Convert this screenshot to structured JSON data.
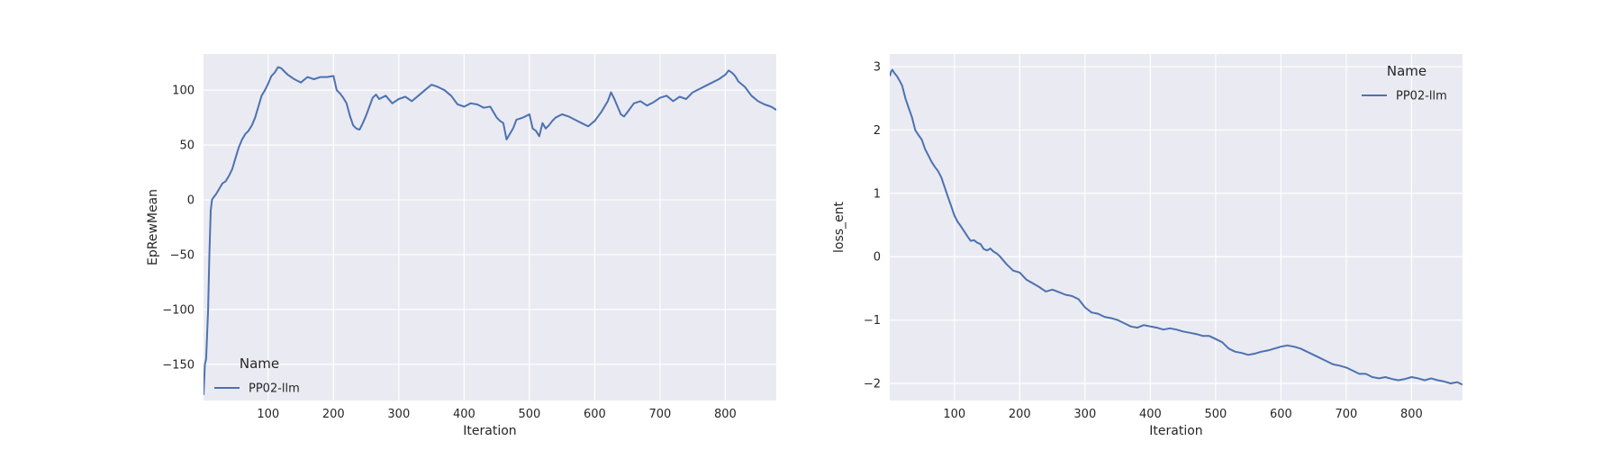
{
  "colors": {
    "plot_bg": "#EAEAF2",
    "grid": "#FFFFFF",
    "line": "#4C72B0",
    "text": "#262626"
  },
  "chart_data": [
    {
      "type": "line",
      "xlabel": "Iteration",
      "ylabel": "EpRewMean",
      "xlim": [
        1,
        878
      ],
      "ylim": [
        -183,
        133
      ],
      "x_ticks": [
        100,
        200,
        300,
        400,
        500,
        600,
        700,
        800
      ],
      "y_ticks": [
        -150,
        -100,
        -50,
        0,
        50,
        100
      ],
      "grid": true,
      "legend": {
        "title": "Name",
        "placement": "lower-left",
        "entries": [
          "PP02-llm"
        ]
      },
      "series": [
        {
          "name": "PP02-llm",
          "x": [
            1,
            3,
            5,
            8,
            10,
            12,
            14,
            16,
            20,
            25,
            30,
            35,
            40,
            45,
            50,
            55,
            60,
            65,
            70,
            75,
            80,
            85,
            90,
            95,
            100,
            105,
            110,
            115,
            120,
            125,
            130,
            140,
            150,
            160,
            170,
            180,
            190,
            200,
            205,
            210,
            215,
            220,
            225,
            230,
            235,
            240,
            245,
            250,
            255,
            260,
            265,
            270,
            280,
            290,
            300,
            310,
            320,
            330,
            340,
            350,
            360,
            370,
            380,
            390,
            400,
            410,
            420,
            430,
            440,
            450,
            455,
            460,
            465,
            470,
            475,
            480,
            490,
            500,
            505,
            510,
            515,
            520,
            525,
            530,
            535,
            540,
            550,
            560,
            570,
            580,
            590,
            600,
            610,
            620,
            625,
            630,
            635,
            640,
            645,
            650,
            660,
            670,
            680,
            690,
            700,
            710,
            720,
            730,
            740,
            750,
            760,
            770,
            780,
            790,
            800,
            805,
            810,
            815,
            820,
            830,
            840,
            850,
            860,
            870,
            878
          ],
          "y": [
            -178,
            -150,
            -145,
            -100,
            -50,
            -10,
            0,
            2,
            5,
            10,
            15,
            17,
            22,
            28,
            38,
            48,
            55,
            60,
            63,
            68,
            75,
            85,
            95,
            100,
            106,
            113,
            116,
            121,
            120,
            117,
            114,
            110,
            107,
            112,
            110,
            112,
            112,
            113,
            100,
            97,
            93,
            88,
            77,
            68,
            65,
            64,
            70,
            77,
            85,
            93,
            96,
            92,
            95,
            88,
            92,
            94,
            90,
            95,
            100,
            105,
            103,
            100,
            95,
            87,
            85,
            88,
            87,
            84,
            85,
            75,
            72,
            70,
            55,
            60,
            65,
            73,
            75,
            78,
            65,
            63,
            58,
            70,
            65,
            68,
            72,
            75,
            78,
            76,
            73,
            70,
            67,
            72,
            80,
            90,
            98,
            92,
            85,
            78,
            76,
            80,
            88,
            90,
            86,
            89,
            93,
            95,
            90,
            94,
            92,
            98,
            101,
            104,
            107,
            110,
            114,
            118,
            116,
            113,
            108,
            103,
            95,
            90,
            87,
            85,
            82
          ]
        }
      ]
    },
    {
      "type": "line",
      "xlabel": "Iteration",
      "ylabel": "loss_ent",
      "xlim": [
        1,
        878
      ],
      "ylim": [
        -2.27,
        3.2
      ],
      "x_ticks": [
        100,
        200,
        300,
        400,
        500,
        600,
        700,
        800
      ],
      "y_ticks": [
        -2,
        -1,
        0,
        1,
        2,
        3
      ],
      "grid": true,
      "legend": {
        "title": "Name",
        "placement": "upper-right",
        "entries": [
          "PP02-llm"
        ]
      },
      "series": [
        {
          "name": "PP02-llm",
          "x": [
            1,
            3,
            5,
            8,
            12,
            16,
            20,
            25,
            30,
            35,
            40,
            45,
            50,
            55,
            60,
            65,
            70,
            75,
            80,
            85,
            90,
            95,
            100,
            105,
            110,
            115,
            120,
            125,
            130,
            135,
            140,
            145,
            150,
            155,
            160,
            165,
            170,
            180,
            190,
            200,
            210,
            220,
            230,
            240,
            250,
            260,
            270,
            280,
            290,
            300,
            310,
            320,
            330,
            340,
            350,
            360,
            370,
            380,
            390,
            400,
            410,
            420,
            430,
            440,
            450,
            460,
            470,
            480,
            490,
            500,
            510,
            520,
            530,
            540,
            550,
            560,
            570,
            580,
            590,
            600,
            610,
            620,
            630,
            640,
            650,
            660,
            670,
            680,
            690,
            700,
            710,
            720,
            730,
            740,
            750,
            760,
            770,
            780,
            790,
            800,
            810,
            820,
            830,
            840,
            850,
            860,
            870,
            878
          ],
          "y": [
            2.85,
            2.92,
            2.95,
            2.9,
            2.85,
            2.78,
            2.7,
            2.5,
            2.35,
            2.2,
            2.0,
            1.92,
            1.85,
            1.7,
            1.6,
            1.5,
            1.42,
            1.35,
            1.25,
            1.1,
            0.95,
            0.8,
            0.65,
            0.55,
            0.48,
            0.4,
            0.32,
            0.25,
            0.26,
            0.22,
            0.2,
            0.12,
            0.1,
            0.13,
            0.08,
            0.05,
            0.0,
            -0.12,
            -0.22,
            -0.25,
            -0.36,
            -0.42,
            -0.48,
            -0.55,
            -0.52,
            -0.56,
            -0.6,
            -0.62,
            -0.67,
            -0.8,
            -0.88,
            -0.9,
            -0.95,
            -0.97,
            -1.0,
            -1.05,
            -1.1,
            -1.12,
            -1.08,
            -1.1,
            -1.12,
            -1.15,
            -1.13,
            -1.15,
            -1.18,
            -1.2,
            -1.22,
            -1.25,
            -1.25,
            -1.3,
            -1.35,
            -1.45,
            -1.5,
            -1.52,
            -1.55,
            -1.53,
            -1.5,
            -1.48,
            -1.45,
            -1.42,
            -1.4,
            -1.42,
            -1.45,
            -1.5,
            -1.55,
            -1.6,
            -1.65,
            -1.7,
            -1.72,
            -1.75,
            -1.8,
            -1.85,
            -1.85,
            -1.9,
            -1.92,
            -1.9,
            -1.93,
            -1.95,
            -1.93,
            -1.9,
            -1.92,
            -1.95,
            -1.92,
            -1.95,
            -1.97,
            -2.0,
            -1.98,
            -2.02
          ]
        }
      ]
    }
  ]
}
